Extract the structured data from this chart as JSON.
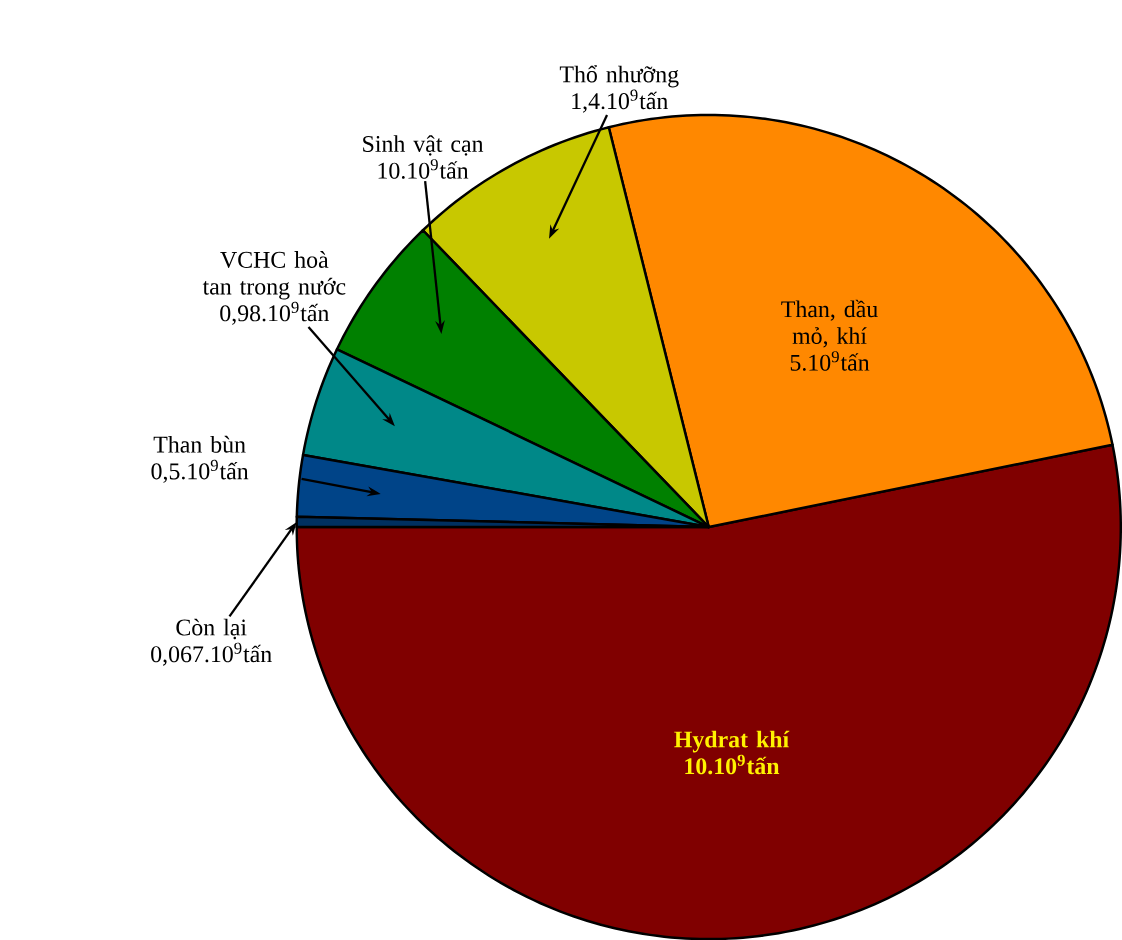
{
  "chart_data": {
    "type": "pie",
    "categories": [
      "Hydrat khí",
      "Than, dầu mỏ, khí",
      "Thổ nhưỡng",
      "Sinh vật cạn",
      "VCHC hoà tan trong nước",
      "Than bùn",
      "Còn lại"
    ],
    "values": [
      53.2,
      25.7,
      8.3,
      5.7,
      4.3,
      2.4,
      0.4
    ],
    "colors": [
      "#800000",
      "#ff8800",
      "#c8c800",
      "#008000",
      "#008888",
      "#004488",
      "#003060"
    ],
    "annotations": [
      "10.10$^{9}$tấn",
      "5.10$^{9}$tấn",
      "1,4.10$^{9}$tấn",
      "10.10$^{9}$tấn",
      "0,98.10$^{9}$tấn",
      "0,5.10$^{9}$tấn",
      "0,067.10$^{9}$tấn"
    ]
  }
}
